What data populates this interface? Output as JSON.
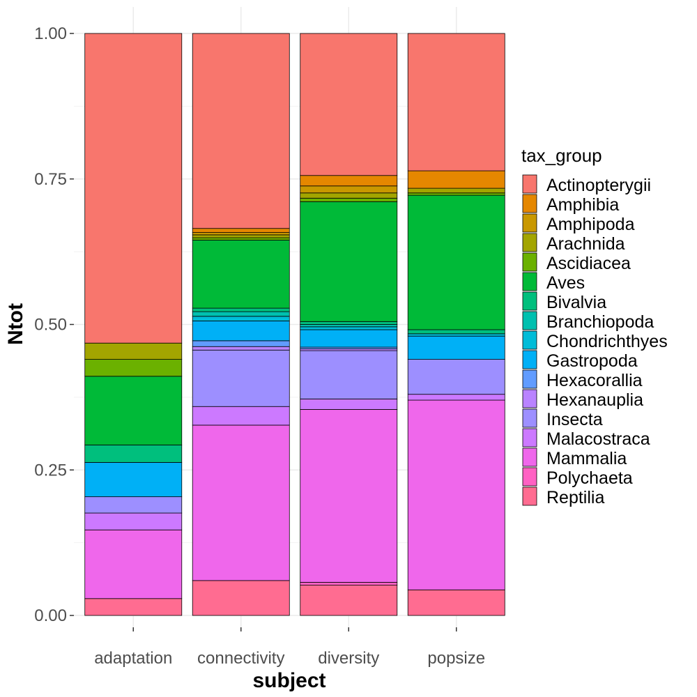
{
  "chart_data": {
    "type": "bar",
    "stacked": true,
    "xlabel": "subject",
    "ylabel": "Ntot",
    "ylim": [
      0,
      1
    ],
    "yticks": [
      "0.00",
      "0.25",
      "0.50",
      "0.75",
      "1.00"
    ],
    "ytick_values": [
      0,
      0.25,
      0.5,
      0.75,
      1
    ],
    "grid": true,
    "legend_title": "tax_group",
    "legend_position": "right",
    "categories": [
      "adaptation",
      "connectivity",
      "diversity",
      "popsize"
    ],
    "series": [
      {
        "name": "Actinopterygii",
        "color": "#F8766D",
        "values": [
          0.532,
          0.335,
          0.244,
          0.236
        ]
      },
      {
        "name": "Amphibia",
        "color": "#E58700",
        "values": [
          0,
          0.007,
          0.018,
          0.03
        ]
      },
      {
        "name": "Amphipoda",
        "color": "#C99800",
        "values": [
          0,
          0.004,
          0.012,
          0
        ]
      },
      {
        "name": "Arachnida",
        "color": "#A3A500",
        "values": [
          0.028,
          0.005,
          0.009,
          0.008
        ]
      },
      {
        "name": "Ascidiacea",
        "color": "#6BB100",
        "values": [
          0.029,
          0.004,
          0.006,
          0.004
        ]
      },
      {
        "name": "Aves",
        "color": "#00BA38",
        "values": [
          0.118,
          0.117,
          0.206,
          0.231
        ]
      },
      {
        "name": "Bivalvia",
        "color": "#00BF7D",
        "values": [
          0.03,
          0.006,
          0.005,
          0.007
        ]
      },
      {
        "name": "Branchiopoda",
        "color": "#00C0AF",
        "values": [
          0,
          0.008,
          0.004,
          0
        ]
      },
      {
        "name": "Chondrichthyes",
        "color": "#00BCD8",
        "values": [
          0,
          0.008,
          0.005,
          0.004
        ]
      },
      {
        "name": "Gastropoda",
        "color": "#00B0F6",
        "values": [
          0.059,
          0.034,
          0.03,
          0.04
        ]
      },
      {
        "name": "Hexacorallia",
        "color": "#619CFF",
        "values": [
          0,
          0.01,
          0.003,
          0
        ]
      },
      {
        "name": "Hexanauplia",
        "color": "#B983FF",
        "values": [
          0,
          0.006,
          0.003,
          0
        ]
      },
      {
        "name": "Insecta",
        "color": "#9D8FFF",
        "values": [
          0.028,
          0.097,
          0.083,
          0.06
        ]
      },
      {
        "name": "Malacostraca",
        "color": "#CC79FF",
        "values": [
          0.029,
          0.032,
          0.018,
          0.01
        ]
      },
      {
        "name": "Mammalia",
        "color": "#EF67EB",
        "values": [
          0.118,
          0.267,
          0.297,
          0.326
        ]
      },
      {
        "name": "Polychaeta",
        "color": "#FF61C3",
        "values": [
          0,
          0,
          0.005,
          0
        ]
      },
      {
        "name": "Reptilia",
        "color": "#FF6C91",
        "values": [
          0.029,
          0.06,
          0.052,
          0.044
        ]
      }
    ]
  }
}
